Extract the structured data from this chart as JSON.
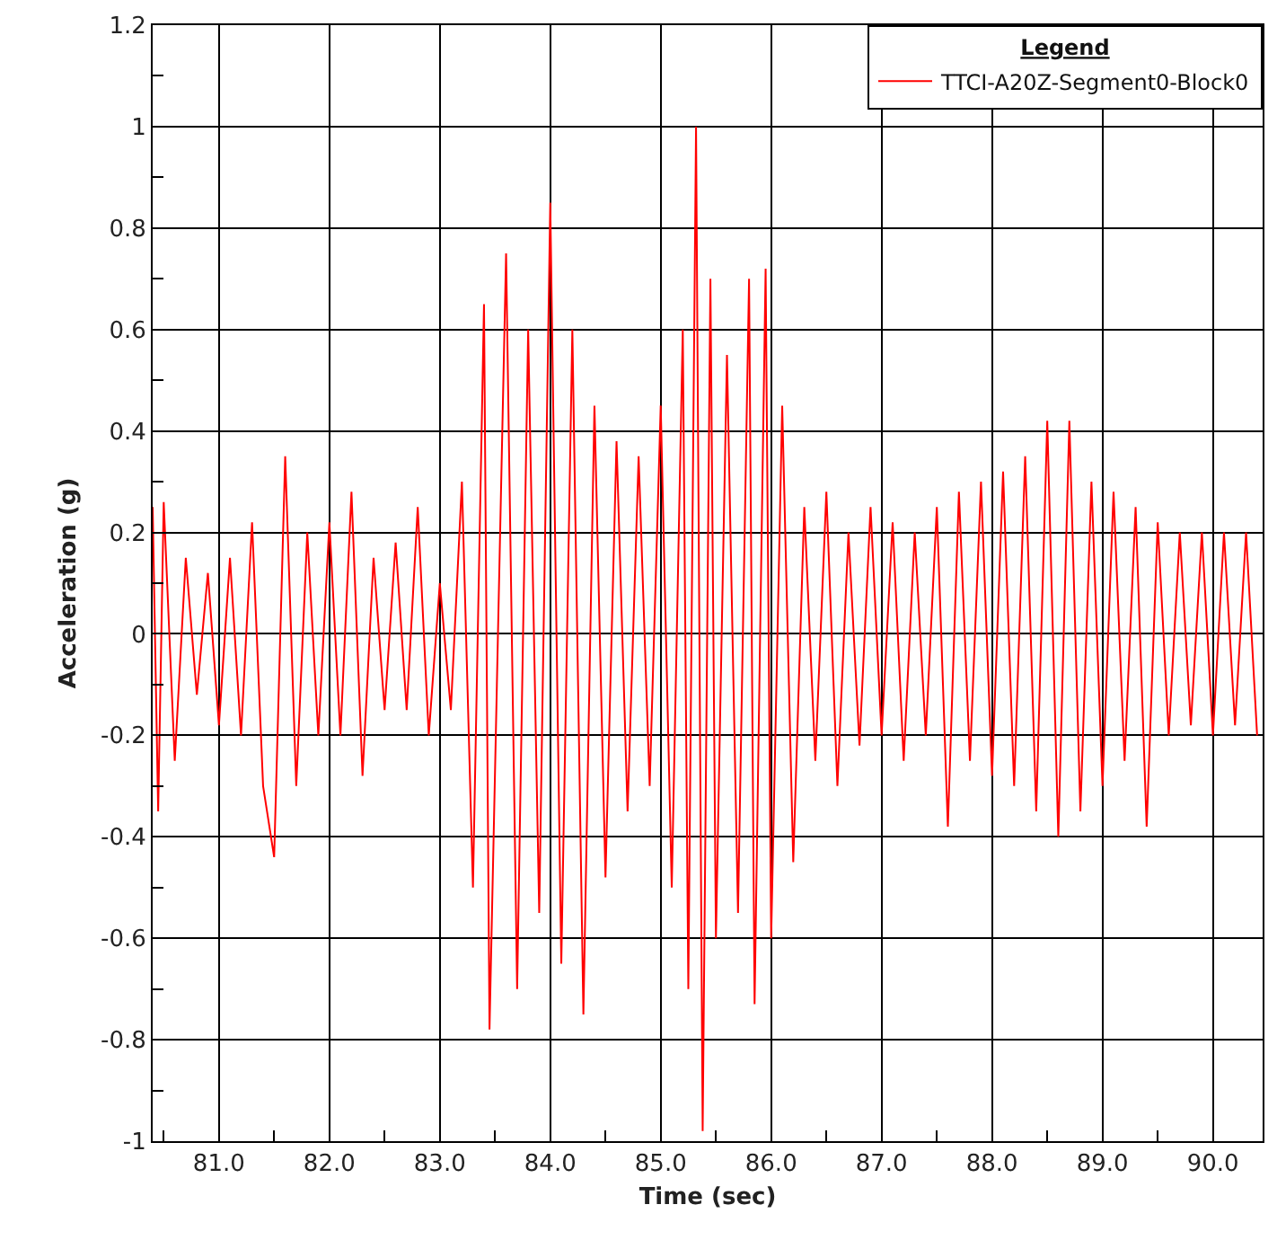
{
  "chart_data": {
    "type": "line",
    "xlabel": "Time (sec)",
    "ylabel": "Acceleration (g)",
    "legend_title": "Legend",
    "xlim": [
      80.4,
      90.45
    ],
    "ylim": [
      -1,
      1.2
    ],
    "xticks": [
      {
        "value": 81,
        "label": "81.0"
      },
      {
        "value": 82,
        "label": "82.0"
      },
      {
        "value": 83,
        "label": "83.0"
      },
      {
        "value": 84,
        "label": "84.0"
      },
      {
        "value": 85,
        "label": "85.0"
      },
      {
        "value": 86,
        "label": "86.0"
      },
      {
        "value": 87,
        "label": "87.0"
      },
      {
        "value": 88,
        "label": "88.0"
      },
      {
        "value": 89,
        "label": "89.0"
      },
      {
        "value": 90,
        "label": "90.0"
      }
    ],
    "yticks": [
      -1,
      -0.8,
      -0.6,
      -0.4,
      -0.2,
      0,
      0.2,
      0.4,
      0.6,
      0.8,
      1,
      1.2
    ],
    "grid": true,
    "legend": "top right",
    "marker": "none",
    "line_style": "solid",
    "series": [
      {
        "name": "TTCI-A20Z-Segment0-Block0",
        "color": "#ff0000",
        "x": [
          80.4,
          80.45,
          80.5,
          80.6,
          80.7,
          80.8,
          80.9,
          81.0,
          81.1,
          81.2,
          81.3,
          81.4,
          81.5,
          81.6,
          81.7,
          81.8,
          81.9,
          82.0,
          82.1,
          82.2,
          82.3,
          82.4,
          82.5,
          82.6,
          82.7,
          82.8,
          82.9,
          83.0,
          83.1,
          83.2,
          83.3,
          83.4,
          83.45,
          83.6,
          83.7,
          83.8,
          83.9,
          84.0,
          84.1,
          84.2,
          84.3,
          84.4,
          84.5,
          84.6,
          84.7,
          84.8,
          84.9,
          85.0,
          85.1,
          85.2,
          85.25,
          85.32,
          85.38,
          85.45,
          85.5,
          85.6,
          85.7,
          85.8,
          85.85,
          85.95,
          86.0,
          86.1,
          86.2,
          86.3,
          86.4,
          86.5,
          86.6,
          86.7,
          86.8,
          86.9,
          87.0,
          87.1,
          87.2,
          87.3,
          87.4,
          87.5,
          87.6,
          87.7,
          87.8,
          87.9,
          88.0,
          88.1,
          88.2,
          88.3,
          88.4,
          88.5,
          88.6,
          88.7,
          88.8,
          88.9,
          89.0,
          89.1,
          89.2,
          89.3,
          89.4,
          89.5,
          89.6,
          89.7,
          89.8,
          89.9,
          90.0,
          90.1,
          90.2,
          90.3,
          90.4
        ],
        "values": [
          0.25,
          -0.35,
          0.26,
          -0.25,
          0.15,
          -0.12,
          0.12,
          -0.18,
          0.15,
          -0.2,
          0.22,
          -0.3,
          -0.44,
          0.35,
          -0.3,
          0.2,
          -0.2,
          0.22,
          -0.2,
          0.28,
          -0.28,
          0.15,
          -0.15,
          0.18,
          -0.15,
          0.25,
          -0.2,
          0.1,
          -0.15,
          0.3,
          -0.5,
          0.65,
          -0.78,
          0.75,
          -0.7,
          0.6,
          -0.55,
          0.85,
          -0.65,
          0.6,
          -0.75,
          0.45,
          -0.48,
          0.38,
          -0.35,
          0.35,
          -0.3,
          0.45,
          -0.5,
          0.6,
          -0.7,
          1.0,
          -0.98,
          0.7,
          -0.6,
          0.55,
          -0.55,
          0.7,
          -0.73,
          0.72,
          -0.6,
          0.45,
          -0.45,
          0.25,
          -0.25,
          0.28,
          -0.3,
          0.2,
          -0.22,
          0.25,
          -0.2,
          0.22,
          -0.25,
          0.2,
          -0.2,
          0.25,
          -0.38,
          0.28,
          -0.25,
          0.3,
          -0.28,
          0.32,
          -0.3,
          0.35,
          -0.35,
          0.42,
          -0.4,
          0.42,
          -0.35,
          0.3,
          -0.3,
          0.28,
          -0.25,
          0.25,
          -0.38,
          0.22,
          -0.2,
          0.2,
          -0.18,
          0.2,
          -0.2,
          0.2,
          -0.18,
          0.2,
          -0.2
        ]
      }
    ]
  }
}
